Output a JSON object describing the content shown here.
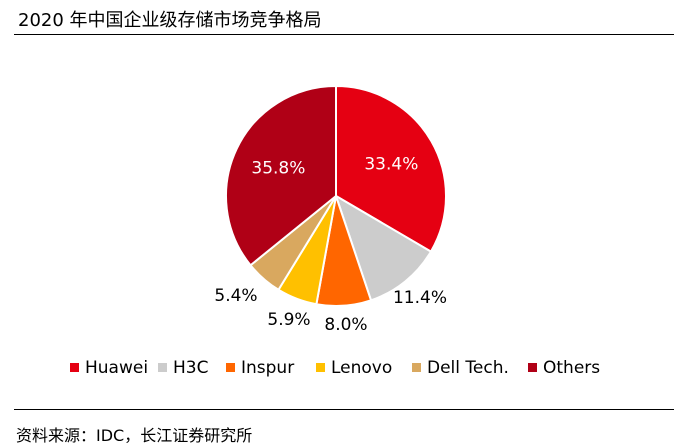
{
  "title": "2020 年中国企业级存储市场竞争格局",
  "source": "资料来源：IDC，长江证券研究所",
  "chart_data": {
    "type": "pie",
    "title": "2020 年中国企业级存储市场竞争格局",
    "categories": [
      "Huawei",
      "H3C",
      "Inspur",
      "Lenovo",
      "Dell Tech.",
      "Others"
    ],
    "values": [
      33.4,
      11.4,
      8.0,
      5.9,
      5.4,
      35.8
    ],
    "labels": [
      "33.4%",
      "11.4%",
      "8.0%",
      "5.9%",
      "5.4%",
      "35.8%"
    ],
    "colors": [
      "#e50012",
      "#cccccc",
      "#ff6600",
      "#ffc000",
      "#d9a85f",
      "#b00016"
    ],
    "legend_position": "bottom"
  }
}
